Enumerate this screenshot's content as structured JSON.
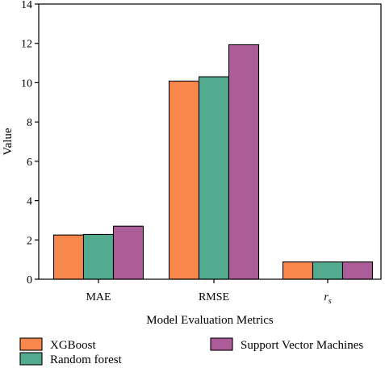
{
  "chart_data": {
    "type": "bar",
    "categories": [
      "MAE",
      "RMSE",
      "r_s"
    ],
    "category_labels": [
      {
        "base": "MAE",
        "sub": ""
      },
      {
        "base": "RMSE",
        "sub": ""
      },
      {
        "base": "r",
        "sub": "s"
      }
    ],
    "series": [
      {
        "name": "XGBoost",
        "values": [
          2.25,
          10.08,
          0.88
        ],
        "color": "#F7874C"
      },
      {
        "name": "Random forest",
        "values": [
          2.28,
          10.3,
          0.88
        ],
        "color": "#52AB8E"
      },
      {
        "name": "Support Vector Machines",
        "values": [
          2.7,
          11.93,
          0.88
        ],
        "color": "#AC5C98"
      }
    ],
    "xlabel": "Model Evaluation Metrics",
    "ylabel": "Value",
    "ylim": [
      0,
      14
    ],
    "yticks": [
      0,
      2,
      4,
      6,
      8,
      10,
      12,
      14
    ],
    "grid": false,
    "legend_position": "bottom"
  }
}
